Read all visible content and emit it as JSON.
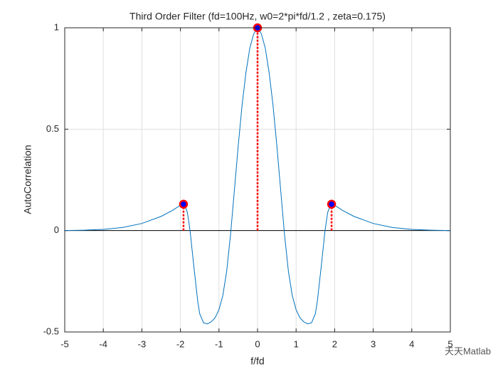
{
  "chart_data": {
    "type": "line",
    "title": "Third Order Filter (fd=100Hz, w0=2*pi*fd/1.2 , zeta=0.175)",
    "xlabel": "f/fd",
    "ylabel": "AutoCorrelation",
    "watermark": "天天Matlab",
    "xlim": [
      -5,
      5
    ],
    "ylim": [
      -0.5,
      1
    ],
    "xticks": [
      -5,
      -4,
      -3,
      -2,
      -1,
      0,
      1,
      2,
      3,
      4,
      5
    ],
    "yticks": [
      -0.5,
      0,
      0.5,
      1
    ],
    "grid": true,
    "series": [
      {
        "style": "line",
        "color": "#0072bd",
        "x": [
          -5,
          -4.5,
          -4,
          -3.5,
          -3,
          -2.5,
          -2.2,
          -2,
          -1.9,
          -1.82,
          -1.75,
          -1.65,
          -1.55,
          -1.5,
          -1.4,
          -1.3,
          -1.2,
          -1.1,
          -1,
          -0.9,
          -0.8,
          -0.7,
          -0.6,
          -0.5,
          -0.4,
          -0.3,
          -0.2,
          -0.1,
          0,
          0.1,
          0.2,
          0.3,
          0.4,
          0.5,
          0.6,
          0.7,
          0.8,
          0.9,
          1,
          1.1,
          1.2,
          1.3,
          1.4,
          1.5,
          1.55,
          1.65,
          1.75,
          1.82,
          1.9,
          2,
          2.2,
          2.5,
          3,
          3.5,
          4,
          4.5,
          5
        ],
        "values": [
          0,
          0.002,
          0.006,
          0.015,
          0.035,
          0.07,
          0.1,
          0.125,
          0.13,
          0.09,
          0,
          -0.18,
          -0.35,
          -0.41,
          -0.455,
          -0.46,
          -0.45,
          -0.43,
          -0.39,
          -0.32,
          -0.2,
          -0.02,
          0.2,
          0.42,
          0.62,
          0.78,
          0.9,
          0.97,
          1,
          0.97,
          0.9,
          0.78,
          0.62,
          0.42,
          0.2,
          -0.02,
          -0.2,
          -0.32,
          -0.39,
          -0.43,
          -0.45,
          -0.46,
          -0.455,
          -0.41,
          -0.35,
          -0.18,
          0,
          0.09,
          0.13,
          0.125,
          0.1,
          0.07,
          0.035,
          0.015,
          0.006,
          0.002,
          0
        ]
      },
      {
        "style": "stem",
        "color": "#ff0000",
        "marker_face_color": "#0000ff",
        "x": [
          -1.92,
          0,
          1.92
        ],
        "values": [
          0.13,
          1,
          0.13
        ]
      }
    ]
  }
}
